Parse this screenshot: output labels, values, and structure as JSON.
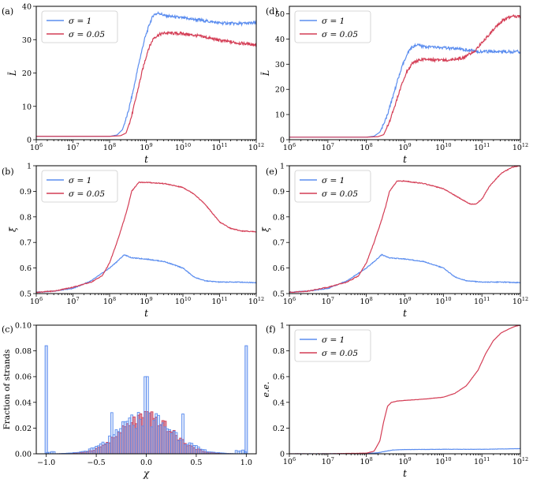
{
  "colors": {
    "sigma1": "#5b8def",
    "sigma005": "#d43d55",
    "hist_red_fill": "#c97a92"
  },
  "chart_data": [
    {
      "id": "a",
      "type": "line",
      "panel_label": "(a)",
      "xlabel": "t",
      "ylabel": "L̄",
      "xscale": "log",
      "xlim": [
        1000000.0,
        1000000000000.0
      ],
      "ylim": [
        0,
        40
      ],
      "xticks": [
        6,
        7,
        8,
        9,
        10,
        11,
        12
      ],
      "yticks": [
        0,
        10,
        20,
        30,
        40
      ],
      "legend": [
        "σ = 1",
        "σ = 0.05"
      ],
      "series": [
        {
          "name": "σ = 1",
          "color_key": "sigma1",
          "x": [
            6,
            7,
            8,
            8.2,
            8.35,
            8.5,
            8.65,
            8.8,
            8.95,
            9.1,
            9.2,
            9.35,
            9.5,
            10,
            10.5,
            11,
            11.5,
            12
          ],
          "y": [
            1,
            1,
            1,
            1.4,
            3,
            8,
            15,
            23,
            30,
            35,
            37.5,
            38,
            37.2,
            36.5,
            35.8,
            35,
            34.8,
            35
          ]
        },
        {
          "name": "σ = 0.05",
          "color_key": "sigma005",
          "x": [
            6,
            7,
            8,
            8.3,
            8.45,
            8.6,
            8.75,
            8.9,
            9.05,
            9.2,
            9.35,
            9.5,
            10,
            10.5,
            11,
            11.5,
            12
          ],
          "y": [
            1,
            1,
            1,
            1.2,
            2,
            7,
            14,
            21,
            27,
            30.5,
            31.5,
            32,
            31.8,
            31,
            29.8,
            29,
            28.5
          ]
        }
      ]
    },
    {
      "id": "b",
      "type": "line",
      "panel_label": "(b)",
      "xlabel": "t",
      "ylabel": "ξ̄",
      "xscale": "log",
      "xlim": [
        1000000.0,
        1000000000000.0
      ],
      "ylim": [
        0.5,
        1.0
      ],
      "xticks": [
        6,
        7,
        8,
        9,
        10,
        11,
        12
      ],
      "yticks": [
        0.5,
        0.6,
        0.7,
        0.8,
        0.9,
        1.0
      ],
      "legend": [
        "σ = 1",
        "σ = 0.05"
      ],
      "series": [
        {
          "name": "σ = 1",
          "color_key": "sigma1",
          "x": [
            6,
            6.5,
            7,
            7.5,
            8,
            8.2,
            8.4,
            8.6,
            9,
            9.5,
            10,
            10.3,
            10.6,
            11,
            11.5,
            12
          ],
          "y": [
            0.505,
            0.51,
            0.52,
            0.55,
            0.6,
            0.625,
            0.652,
            0.64,
            0.635,
            0.625,
            0.6,
            0.565,
            0.55,
            0.545,
            0.545,
            0.543
          ]
        },
        {
          "name": "σ = 0.05",
          "color_key": "sigma005",
          "x": [
            6,
            6.5,
            7,
            7.5,
            7.8,
            8.0,
            8.2,
            8.4,
            8.5,
            8.6,
            8.8,
            9,
            9.5,
            10,
            10.3,
            10.6,
            10.8,
            11,
            11.3,
            11.6,
            12
          ],
          "y": [
            0.505,
            0.51,
            0.525,
            0.545,
            0.57,
            0.62,
            0.7,
            0.79,
            0.84,
            0.9,
            0.935,
            0.935,
            0.93,
            0.915,
            0.89,
            0.85,
            0.815,
            0.78,
            0.755,
            0.745,
            0.742
          ]
        }
      ]
    },
    {
      "id": "c",
      "type": "bar",
      "panel_label": "(c)",
      "xlabel": "χ",
      "ylabel": "Fraction of strands",
      "xlim": [
        -1.1,
        1.1
      ],
      "ylim": [
        0,
        0.1
      ],
      "xticks": [
        -1.0,
        -0.5,
        0.0,
        0.5,
        1.0
      ],
      "yticks": [
        0.0,
        0.02,
        0.04,
        0.06,
        0.08,
        0.1
      ],
      "xtick_labels": [
        "−1.0",
        "−0.5",
        "0.0",
        "0.5",
        "1.0"
      ],
      "ytick_labels": [
        "0.00",
        "0.02",
        "0.04",
        "0.06",
        "0.08",
        "0.10"
      ],
      "spikes": [
        {
          "x": -1.0,
          "value": 0.084
        },
        {
          "x": 1.0,
          "value": 0.084
        }
      ],
      "blue_peaks": [
        {
          "x": 0.0,
          "value": 0.06
        },
        {
          "x": -0.35,
          "value": 0.032
        },
        {
          "x": 0.36,
          "value": 0.031
        },
        {
          "x": -0.22,
          "value": 0.025
        },
        {
          "x": 0.16,
          "value": 0.024
        }
      ],
      "envelope_peak": 0.028,
      "red_peak": 0.034
    },
    {
      "id": "d",
      "type": "line",
      "panel_label": "(d)",
      "xlabel": "t",
      "ylabel": "L̄",
      "xscale": "log",
      "xlim": [
        1000000.0,
        1000000000000.0
      ],
      "ylim": [
        0,
        53
      ],
      "xticks": [
        6,
        7,
        8,
        9,
        10,
        11,
        12
      ],
      "yticks": [
        0,
        10,
        20,
        30,
        40,
        50
      ],
      "legend": [
        "σ = 1",
        "σ = 0.05"
      ],
      "series": [
        {
          "name": "σ = 1",
          "color_key": "sigma1",
          "x": [
            6,
            7,
            8,
            8.2,
            8.35,
            8.5,
            8.65,
            8.8,
            8.95,
            9.1,
            9.2,
            9.35,
            9.5,
            10,
            10.5,
            11,
            11.5,
            12
          ],
          "y": [
            1,
            1,
            1,
            1.4,
            3,
            8,
            15,
            23,
            30,
            35,
            37,
            37.5,
            37,
            36.5,
            35.8,
            35,
            35,
            35
          ]
        },
        {
          "name": "σ = 0.05",
          "color_key": "sigma005",
          "x": [
            6,
            7,
            8,
            8.3,
            8.45,
            8.6,
            8.75,
            8.9,
            9.05,
            9.2,
            9.35,
            9.5,
            10,
            10.5,
            10.8,
            11,
            11.2,
            11.4,
            11.6,
            11.8,
            12
          ],
          "y": [
            1,
            1,
            1,
            1.2,
            2,
            7,
            14,
            21,
            27,
            30.5,
            31.5,
            32,
            31.5,
            32.5,
            35,
            38.5,
            42,
            45.5,
            48,
            49,
            49
          ]
        }
      ]
    },
    {
      "id": "e",
      "type": "line",
      "panel_label": "(e)",
      "xlabel": "t",
      "ylabel": "ξ̄",
      "xscale": "log",
      "xlim": [
        1000000.0,
        1000000000000.0
      ],
      "ylim": [
        0.5,
        1.0
      ],
      "xticks": [
        6,
        7,
        8,
        9,
        10,
        11,
        12
      ],
      "yticks": [
        0.5,
        0.6,
        0.7,
        0.8,
        0.9,
        1.0
      ],
      "legend": [
        "σ = 1",
        "σ = 0.05"
      ],
      "series": [
        {
          "name": "σ = 1",
          "color_key": "sigma1",
          "x": [
            6,
            6.5,
            7,
            7.5,
            8,
            8.2,
            8.4,
            8.6,
            9,
            9.5,
            10,
            10.3,
            10.6,
            11,
            11.5,
            12
          ],
          "y": [
            0.505,
            0.51,
            0.52,
            0.55,
            0.6,
            0.625,
            0.652,
            0.64,
            0.635,
            0.625,
            0.6,
            0.565,
            0.55,
            0.545,
            0.545,
            0.543
          ]
        },
        {
          "name": "σ = 0.05",
          "color_key": "sigma005",
          "x": [
            6,
            6.5,
            7,
            7.5,
            7.8,
            8.0,
            8.2,
            8.4,
            8.5,
            8.6,
            8.8,
            9,
            9.5,
            10,
            10.4,
            10.7,
            10.85,
            11,
            11.2,
            11.5,
            11.8,
            12
          ],
          "y": [
            0.505,
            0.51,
            0.525,
            0.545,
            0.57,
            0.62,
            0.7,
            0.79,
            0.84,
            0.9,
            0.94,
            0.94,
            0.93,
            0.91,
            0.875,
            0.85,
            0.85,
            0.87,
            0.92,
            0.97,
            0.995,
            1.0
          ]
        }
      ]
    },
    {
      "id": "f",
      "type": "line",
      "panel_label": "(f)",
      "xlabel": "t",
      "ylabel": "e.e.",
      "xscale": "log",
      "xlim": [
        1000000.0,
        1000000000000.0
      ],
      "ylim": [
        0,
        1.0
      ],
      "xticks": [
        6,
        7,
        8,
        9,
        10,
        11,
        12
      ],
      "yticks": [
        0.0,
        0.2,
        0.4,
        0.6,
        0.8,
        1.0
      ],
      "legend": [
        "σ = 1",
        "σ = 0.05"
      ],
      "series": [
        {
          "name": "σ = 1",
          "color_key": "sigma1",
          "x": [
            6,
            7,
            8,
            8.3,
            8.5,
            8.7,
            9,
            10,
            11,
            12
          ],
          "y": [
            0,
            0,
            0.002,
            0.008,
            0.02,
            0.03,
            0.033,
            0.035,
            0.035,
            0.04
          ]
        },
        {
          "name": "σ = 0.05",
          "color_key": "sigma005",
          "x": [
            6,
            7,
            8,
            8.2,
            8.35,
            8.45,
            8.55,
            8.65,
            8.8,
            9,
            9.5,
            10,
            10.3,
            10.6,
            10.9,
            11.1,
            11.3,
            11.5,
            11.7,
            11.85,
            12
          ],
          "y": [
            0,
            0,
            0.005,
            0.02,
            0.1,
            0.25,
            0.37,
            0.4,
            0.41,
            0.415,
            0.425,
            0.44,
            0.47,
            0.53,
            0.65,
            0.78,
            0.88,
            0.94,
            0.97,
            0.99,
            1.0
          ]
        }
      ]
    }
  ]
}
